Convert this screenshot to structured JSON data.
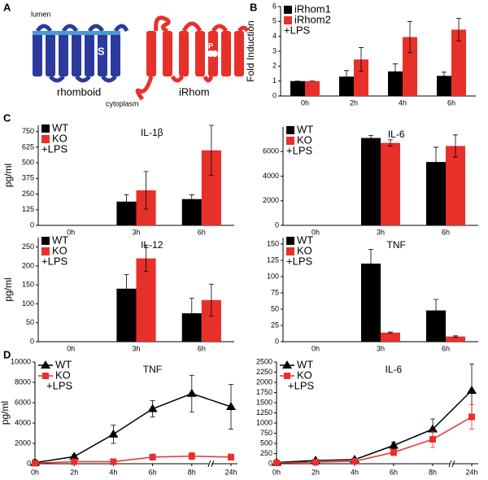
{
  "panel_labels": [
    "A",
    "B",
    "C",
    "D"
  ],
  "diagram": {
    "lumen": "lumen",
    "cytoplasm": "cytoplasm",
    "rhomboid": "rhomboid",
    "irhom": "iRhom",
    "s": "S",
    "h": "H",
    "p": "P"
  },
  "chart_data": [
    {
      "type": "bar",
      "y_label": "Fold Induction",
      "annotation": "+LPS",
      "categories": [
        "0h",
        "2h",
        "4h",
        "6h"
      ],
      "series": [
        {
          "name": "iRhom1",
          "color": "#000000",
          "values": [
            1,
            1.3,
            1.65,
            1.35
          ],
          "errors": [
            0,
            0.4,
            0.5,
            0.25
          ]
        },
        {
          "name": "iRhom2",
          "color": "#e8302a",
          "values": [
            1,
            2.45,
            3.95,
            4.45
          ],
          "errors": [
            0,
            0.8,
            1.05,
            0.75
          ]
        }
      ],
      "ylim": [
        0,
        6
      ],
      "yticks": [
        0,
        1,
        2,
        3,
        4,
        5,
        6
      ]
    },
    {
      "type": "bar",
      "title": "IL-1β",
      "y_label": "pg/ml",
      "annotation": "+LPS",
      "categories": [
        "0h",
        "3h",
        "6h"
      ],
      "series": [
        {
          "name": "WT",
          "color": "#000000",
          "values": [
            0,
            190,
            210
          ],
          "errors": [
            0,
            55,
            35
          ]
        },
        {
          "name": "KO",
          "color": "#e8302a",
          "values": [
            0,
            280,
            600
          ],
          "errors": [
            0,
            150,
            200
          ]
        }
      ],
      "ylim": [
        0,
        800
      ],
      "yticks": [
        0,
        125,
        250,
        375,
        500,
        625,
        750
      ]
    },
    {
      "type": "bar",
      "title": "IL-6",
      "annotation": "+LPS",
      "categories": [
        "0h",
        "3h",
        "6h"
      ],
      "series": [
        {
          "name": "WT",
          "color": "#000000",
          "values": [
            0,
            7100,
            5150
          ],
          "errors": [
            0,
            200,
            1200
          ]
        },
        {
          "name": "KO",
          "color": "#e8302a",
          "values": [
            0,
            6700,
            6450
          ],
          "errors": [
            0,
            250,
            900
          ]
        }
      ],
      "ylim": [
        0,
        8000
      ],
      "yticks": [
        0,
        2000,
        4000,
        6000
      ]
    },
    {
      "type": "bar",
      "title": "IL-12",
      "y_label": "pg/ml",
      "annotation": "+LPS",
      "categories": [
        "0h",
        "3h",
        "6h"
      ],
      "series": [
        {
          "name": "WT",
          "color": "#000000",
          "values": [
            0,
            140,
            75
          ],
          "errors": [
            0,
            37,
            40
          ]
        },
        {
          "name": "KO",
          "color": "#e8302a",
          "values": [
            0,
            220,
            110
          ],
          "errors": [
            0,
            35,
            42
          ]
        }
      ],
      "ylim": [
        0,
        275
      ],
      "yticks": [
        0,
        50,
        100,
        150,
        200,
        250
      ]
    },
    {
      "type": "bar",
      "title": "TNF",
      "annotation": "+LPS",
      "categories": [
        "0h",
        "3h",
        "6h"
      ],
      "series": [
        {
          "name": "WT",
          "color": "#000000",
          "values": [
            0,
            120,
            48
          ],
          "errors": [
            0,
            22,
            17
          ]
        },
        {
          "name": "KO",
          "color": "#e8302a",
          "values": [
            0,
            14,
            8
          ],
          "errors": [
            0,
            1,
            1
          ]
        }
      ],
      "ylim": [
        0,
        160
      ],
      "yticks": [
        0,
        25,
        50,
        75,
        100,
        125,
        150
      ]
    },
    {
      "type": "line",
      "title": "TNF",
      "y_label": "pg/ml",
      "annotation": "+LPS",
      "categories": [
        "0h",
        "2h",
        "4h",
        "6h",
        "8h",
        "24h"
      ],
      "series": [
        {
          "name": "WT",
          "color": "#000000",
          "marker": "triangle",
          "values": [
            100,
            700,
            2900,
            5400,
            6900,
            5600
          ],
          "errors": [
            300,
            200,
            900,
            800,
            1800,
            2200
          ]
        },
        {
          "name": "KO",
          "color": "#e8302a",
          "marker": "square",
          "values": [
            50,
            200,
            200,
            650,
            750,
            650
          ],
          "errors": [
            50,
            50,
            50,
            300,
            350,
            300
          ]
        }
      ],
      "ylim": [
        0,
        10000
      ],
      "yticks": [
        0,
        2000,
        4000,
        6000,
        8000,
        10000
      ]
    },
    {
      "type": "line",
      "title": "IL-6",
      "annotation": "+LPS",
      "categories": [
        "0h",
        "2h",
        "4h",
        "6h",
        "8h",
        "24h"
      ],
      "series": [
        {
          "name": "WT",
          "color": "#000000",
          "marker": "triangle",
          "values": [
            30,
            80,
            100,
            450,
            850,
            1800
          ],
          "errors": [
            20,
            30,
            40,
            80,
            250,
            650
          ]
        },
        {
          "name": "KO",
          "color": "#e8302a",
          "marker": "square",
          "values": [
            20,
            40,
            60,
            280,
            600,
            1150
          ],
          "errors": [
            10,
            20,
            20,
            80,
            200,
            300
          ]
        }
      ],
      "ylim": [
        0,
        2500
      ],
      "yticks": [
        0,
        250,
        500,
        750,
        1000,
        1250,
        1500,
        1750,
        2000,
        2250,
        2500
      ]
    }
  ]
}
